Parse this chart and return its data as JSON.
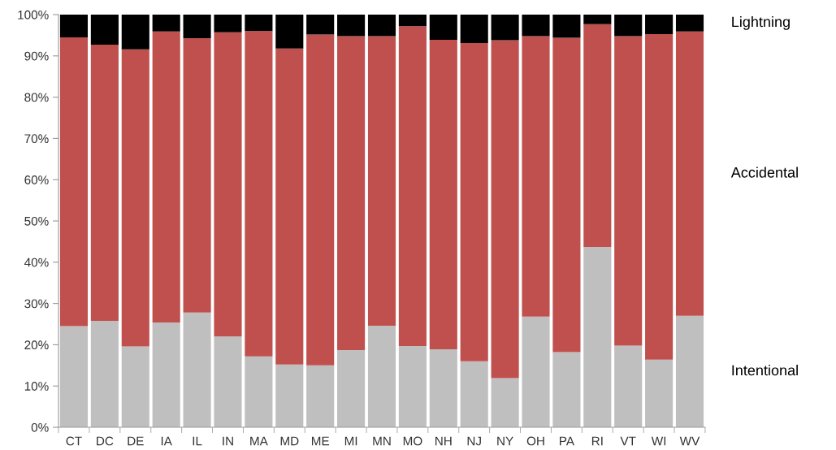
{
  "chart_data": {
    "type": "bar",
    "stacked": true,
    "categories": [
      "CT",
      "DC",
      "DE",
      "IA",
      "IL",
      "IN",
      "MA",
      "MD",
      "ME",
      "MI",
      "MN",
      "MO",
      "NH",
      "NJ",
      "NY",
      "OH",
      "PA",
      "RI",
      "VT",
      "WI",
      "WV"
    ],
    "series": [
      {
        "name": "Intentional",
        "color": "#bfbfbf",
        "values": [
          24.5,
          25.8,
          19.6,
          25.4,
          27.8,
          22.0,
          17.2,
          15.2,
          15.0,
          18.7,
          24.6,
          19.7,
          18.9,
          16.0,
          11.9,
          26.8,
          18.2,
          43.7,
          19.8,
          16.4,
          27.0
        ]
      },
      {
        "name": "Accidental",
        "color": "#c0504d",
        "values": [
          70.0,
          66.9,
          72.0,
          70.5,
          66.5,
          73.7,
          78.8,
          76.6,
          80.2,
          76.1,
          70.2,
          77.5,
          75.0,
          77.1,
          81.9,
          68.0,
          76.2,
          54.0,
          75.0,
          78.9,
          68.9
        ]
      },
      {
        "name": "Lightning",
        "color": "#000000",
        "values": [
          5.5,
          7.3,
          8.4,
          4.1,
          5.7,
          4.3,
          4.0,
          8.2,
          4.8,
          5.2,
          5.2,
          2.8,
          6.1,
          6.9,
          6.2,
          5.2,
          5.6,
          2.3,
          5.2,
          4.7,
          4.1
        ]
      }
    ],
    "ylim": [
      0,
      100
    ],
    "yticks": [
      {
        "value": 0,
        "label": "0%"
      },
      {
        "value": 10,
        "label": "10%"
      },
      {
        "value": 20,
        "label": "20%"
      },
      {
        "value": 30,
        "label": "30%"
      },
      {
        "value": 40,
        "label": "40%"
      },
      {
        "value": 50,
        "label": "50%"
      },
      {
        "value": 60,
        "label": "60%"
      },
      {
        "value": 70,
        "label": "70%"
      },
      {
        "value": 80,
        "label": "80%"
      },
      {
        "value": 90,
        "label": "90%"
      },
      {
        "value": 100,
        "label": "100%"
      }
    ],
    "legend": "right",
    "grid": false
  }
}
